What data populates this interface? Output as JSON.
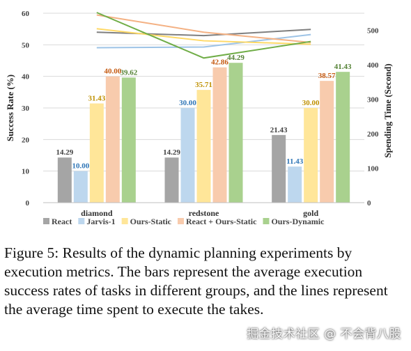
{
  "chart_data": {
    "type": "bar",
    "categories": [
      "diamond",
      "redstone",
      "gold"
    ],
    "series": [
      {
        "name": "React",
        "color": "#a5a5a5",
        "label_color": "#404040",
        "values": [
          14.29,
          14.29,
          21.43
        ]
      },
      {
        "name": "Jarvis-1",
        "color": "#bdd7ee",
        "label_color": "#2e75b6",
        "values": [
          10.0,
          30.0,
          11.43
        ]
      },
      {
        "name": "Ours-Static",
        "color": "#ffe699",
        "label_color": "#bf9000",
        "values": [
          31.43,
          35.71,
          30.0
        ]
      },
      {
        "name": "React + Ours-Static",
        "color": "#f8cbad",
        "label_color": "#c55a11",
        "values": [
          40.0,
          42.86,
          38.57
        ]
      },
      {
        "name": "Ours-Dynamic",
        "color": "#a9d18e",
        "label_color": "#548235",
        "values": [
          39.62,
          44.29,
          41.43
        ]
      }
    ],
    "data_labels": [
      [
        "14.29",
        "10.00",
        "31.43",
        "40.00",
        "39.62"
      ],
      [
        "14.29",
        "30.00",
        "35.71",
        "42.86",
        "44.29"
      ],
      [
        "21.43",
        "11.43",
        "30.00",
        "38.57",
        "41.43"
      ]
    ],
    "lines": [
      {
        "name": "React",
        "color": "#7f7f7f",
        "values": [
          495,
          485,
          503
        ]
      },
      {
        "name": "Jarvis-1",
        "color": "#9dc3e6",
        "values": [
          450,
          452,
          488
        ]
      },
      {
        "name": "Ours-Static",
        "color": "#ffd966",
        "values": [
          505,
          470,
          460
        ]
      },
      {
        "name": "React + Ours-Static",
        "color": "#f4b183",
        "values": [
          545,
          495,
          465
        ]
      },
      {
        "name": "Ours-Dynamic",
        "color": "#70ad47",
        "values": [
          552,
          420,
          468
        ]
      }
    ],
    "ylabel": "Success Rate (%)",
    "ylabel_right": "Spending Time (Second)",
    "ylim": [
      0,
      60
    ],
    "yticks": [
      0,
      10,
      20,
      30,
      40,
      50,
      60
    ],
    "ylim_right": [
      0,
      550
    ],
    "yticks_right": [
      0,
      100,
      200,
      300,
      400,
      500
    ],
    "grid": true,
    "legend_position": "bottom"
  },
  "caption": {
    "label": "Figure 5:",
    "text": "Results of the dynamic planning experiments by execution metrics. The bars represent the average execution success rates of tasks in different groups, and the lines represent the average time spent to execute the takes."
  },
  "watermark": "掘金技术社区 @ 不会背八股"
}
